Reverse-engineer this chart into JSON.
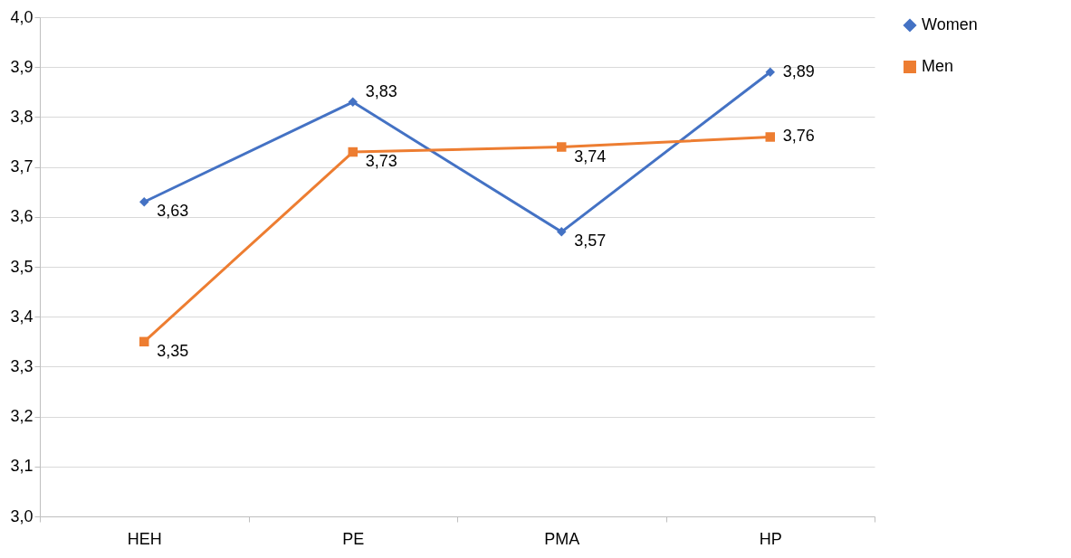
{
  "chart_data": {
    "type": "line",
    "categories": [
      "HEH",
      "PE",
      "PMA",
      "HP"
    ],
    "series": [
      {
        "name": "Women",
        "color": "#4472c4",
        "marker": "diamond",
        "values": [
          3.63,
          3.83,
          3.57,
          3.89
        ],
        "value_labels": [
          "3,63",
          "3,83",
          "3,57",
          "3,89"
        ]
      },
      {
        "name": "Men",
        "color": "#ed7d31",
        "marker": "square",
        "values": [
          3.35,
          3.73,
          3.74,
          3.76
        ],
        "value_labels": [
          "3,35",
          "3,73",
          "3,74",
          "3,76"
        ]
      }
    ],
    "ylim": [
      3.0,
      4.0
    ],
    "yticks": [
      {
        "value": 3.0,
        "label": "3,0"
      },
      {
        "value": 3.1,
        "label": "3,1"
      },
      {
        "value": 3.2,
        "label": "3,2"
      },
      {
        "value": 3.3,
        "label": "3,3"
      },
      {
        "value": 3.4,
        "label": "3,4"
      },
      {
        "value": 3.5,
        "label": "3,5"
      },
      {
        "value": 3.6,
        "label": "3,6"
      },
      {
        "value": 3.7,
        "label": "3,7"
      },
      {
        "value": 3.8,
        "label": "3,8"
      },
      {
        "value": 3.9,
        "label": "3,9"
      },
      {
        "value": 4.0,
        "label": "4,0"
      }
    ],
    "grid": "y",
    "legend": "right",
    "line_style": "solid"
  }
}
